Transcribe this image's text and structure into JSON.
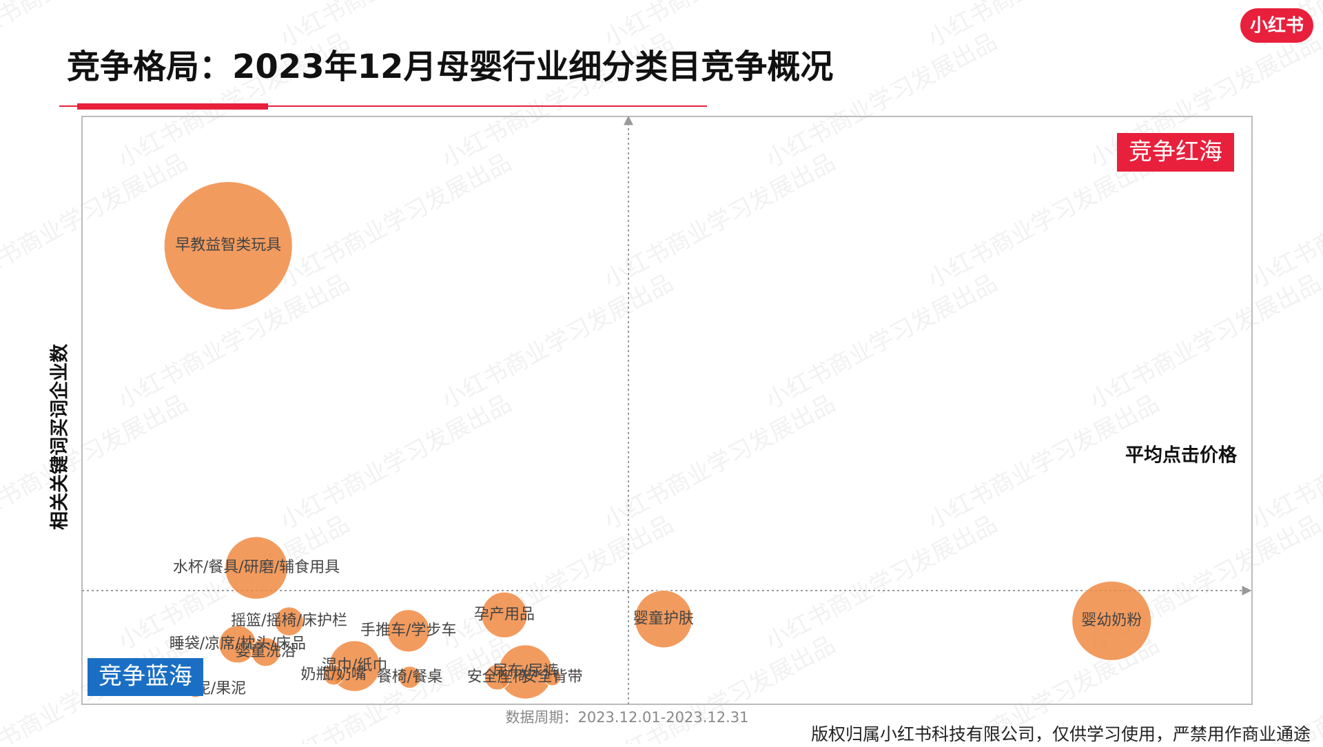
{
  "header": {
    "title": "竞争格局：2023年12月母婴行业细分类目竞争概况",
    "logo": "小红书"
  },
  "chart_data": {
    "type": "bubble",
    "x_label": "平均点击价格",
    "y_label": "相关关键词买词企业数",
    "quadrant_high": "竞争红海",
    "quadrant_low": "竞争蓝海",
    "labels": [
      "早教益智类玩具",
      "水杯/餐具/研磨/辅食用具",
      "摇篮/摇椅/床护栏",
      "睡袋/凉席/枕头/床品",
      "婴童洗浴",
      "手推车/学步车",
      "孕产用品",
      "婴童护肤",
      "婴幼奶粉",
      "尿布/尿裤",
      "安全座椅",
      "安全背带",
      "湿巾/纸巾",
      "餐椅/餐桌",
      "米粉/菜泥/果泥",
      "奶瓶/奶嘴"
    ],
    "x": [
      12.5,
      14.9,
      17.7,
      13.3,
      15.7,
      27.9,
      36.1,
      49.7,
      88.0,
      37.9,
      35.5,
      40.2,
      23.3,
      28.0,
      9.7,
      21.5
    ],
    "values": [
      78.0,
      23.2,
      14.1,
      10.2,
      8.9,
      12.5,
      15.2,
      14.5,
      14.2,
      5.5,
      4.6,
      4.6,
      6.5,
      4.6,
      2.6,
      5.0
    ],
    "sizes": [
      76,
      37,
      17,
      22,
      17,
      25,
      27,
      34,
      47,
      32,
      15,
      10,
      30,
      13,
      10,
      12
    ],
    "color": "#f08a42",
    "xlim": [
      0,
      100
    ],
    "ylim": [
      0,
      100
    ]
  },
  "footer": {
    "period": "数据周期：2023.12.01-2023.12.31",
    "copyright": "版权归属小红书科技有限公司，仅供学习使用，严禁用作商业通途",
    "watermark": "小红书商业学习发展出品"
  }
}
